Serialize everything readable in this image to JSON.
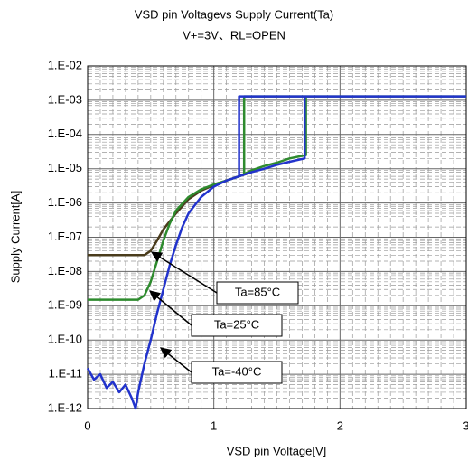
{
  "chart_data": {
    "type": "line",
    "title": "VSD pin Voltagevs Supply Current(Ta)",
    "subtitle": "V+=3V、RL=OPEN",
    "x_label": "VSD pin Voltage[V]",
    "y_label": "Supply Current[A]",
    "xlim": [
      0,
      3
    ],
    "xticks": [
      0,
      1,
      2,
      3
    ],
    "ylim": [
      1e-12,
      0.01
    ],
    "yscale": "log",
    "yticks": [
      {
        "value": 1e-12,
        "label": "1.E-12"
      },
      {
        "value": 1e-11,
        "label": "1.E-11"
      },
      {
        "value": 1e-10,
        "label": "1.E-10"
      },
      {
        "value": 1e-09,
        "label": "1.E-09"
      },
      {
        "value": 1e-08,
        "label": "1.E-08"
      },
      {
        "value": 1e-07,
        "label": "1.E-07"
      },
      {
        "value": 1e-06,
        "label": "1.E-06"
      },
      {
        "value": 1e-05,
        "label": "1.E-05"
      },
      {
        "value": 0.0001,
        "label": "1.E-04"
      },
      {
        "value": 0.001,
        "label": "1.E-03"
      },
      {
        "value": 0.01,
        "label": "1.E-02"
      }
    ],
    "grid": true,
    "series": [
      {
        "name": "Ta=85°C",
        "color": "#4a3c1c",
        "x": [
          0,
          0.45,
          0.5,
          0.55,
          0.6,
          0.7,
          0.8,
          0.9,
          1.0,
          1.1,
          1.2,
          1.3
        ],
        "values": [
          3e-08,
          3e-08,
          4e-08,
          8e-08,
          1.7e-07,
          5e-07,
          1.3e-06,
          2.3e-06,
          3.3e-06,
          4.5e-06,
          6e-06,
          8e-06
        ]
      },
      {
        "name": "Ta=25°C",
        "color": "#2e8b2e",
        "x": [
          0,
          0.4,
          0.45,
          0.5,
          0.55,
          0.6,
          0.65,
          0.7,
          0.8,
          0.9,
          1.0,
          1.1,
          1.2,
          1.3,
          1.4,
          1.5,
          1.6,
          1.73,
          1.73,
          3,
          null,
          1.24,
          1.24,
          1.73
        ],
        "values": [
          1.5e-09,
          1.5e-09,
          2e-09,
          5e-09,
          2e-08,
          8e-08,
          2.5e-07,
          6e-07,
          1.5e-06,
          2.5e-06,
          3.5e-06,
          4.5e-06,
          6e-06,
          9e-06,
          1.2e-05,
          1.5e-05,
          2e-05,
          2.5e-05,
          0.0013,
          0.0013,
          null,
          6.5e-06,
          0.0013,
          0.0013
        ]
      },
      {
        "name": "Ta=-40°C",
        "color": "#2233cc",
        "x": [
          0,
          0.05,
          0.1,
          0.15,
          0.2,
          0.25,
          0.3,
          0.35,
          0.38,
          0.4,
          0.45,
          0.5,
          0.55,
          0.6,
          0.65,
          0.7,
          0.75,
          0.8,
          0.9,
          1.0,
          1.1,
          1.2,
          1.3,
          1.4,
          1.5,
          1.6,
          1.72,
          1.72,
          3,
          null,
          1.2,
          1.2,
          1.72
        ],
        "values": [
          1.5e-11,
          7e-12,
          1e-11,
          4e-12,
          6e-12,
          3e-12,
          5e-12,
          2e-12,
          1e-12,
          3e-12,
          2e-11,
          1e-10,
          6e-10,
          3e-09,
          1.5e-08,
          6e-08,
          2e-07,
          5e-07,
          1.5e-06,
          3e-06,
          4.5e-06,
          6e-06,
          8e-06,
          1e-05,
          1.3e-05,
          1.6e-05,
          2e-05,
          0.0013,
          0.0013,
          null,
          6e-06,
          0.0013,
          0.0013
        ]
      }
    ]
  }
}
